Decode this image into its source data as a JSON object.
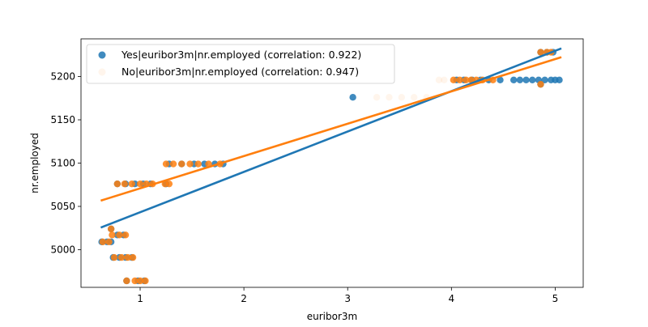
{
  "chart_data": {
    "type": "scatter",
    "xlabel": "euribor3m",
    "ylabel": "nr.employed",
    "xlim": [
      0.43,
      5.27
    ],
    "ylim": [
      4956.5,
      5243.5
    ],
    "xticks": [
      1,
      2,
      3,
      4,
      5
    ],
    "yticks": [
      5000,
      5050,
      5100,
      5150,
      5200
    ],
    "grid": false,
    "legend_position": "top-left",
    "series": [
      {
        "name": "Yes|euribor3m|nr.employed (correlation: 0.922)",
        "color": "#1f77b4",
        "points_alpha": 0.85,
        "fit": {
          "x": [
            0.63,
            5.05
          ],
          "y": [
            5026,
            5232
          ]
        },
        "points": [
          [
            0.63,
            5009
          ],
          [
            0.68,
            5009
          ],
          [
            0.72,
            5009
          ],
          [
            0.72,
            5024
          ],
          [
            0.74,
            4991
          ],
          [
            0.8,
            4991
          ],
          [
            0.86,
            4991
          ],
          [
            0.92,
            4991
          ],
          [
            0.78,
            5017
          ],
          [
            0.84,
            5017
          ],
          [
            0.78,
            5076
          ],
          [
            0.86,
            5076
          ],
          [
            0.95,
            5076
          ],
          [
            1.03,
            5076
          ],
          [
            1.1,
            5076
          ],
          [
            0.87,
            4964
          ],
          [
            0.98,
            4964
          ],
          [
            1.04,
            4964
          ],
          [
            1.25,
            5076
          ],
          [
            1.28,
            5099
          ],
          [
            1.4,
            5099
          ],
          [
            1.52,
            5099
          ],
          [
            1.62,
            5099
          ],
          [
            1.72,
            5099
          ],
          [
            1.8,
            5099
          ],
          [
            3.05,
            5176
          ],
          [
            4.05,
            5196
          ],
          [
            4.12,
            5196
          ],
          [
            4.2,
            5196
          ],
          [
            4.28,
            5196
          ],
          [
            4.36,
            5196
          ],
          [
            4.47,
            5196
          ],
          [
            4.6,
            5196
          ],
          [
            4.66,
            5196
          ],
          [
            4.72,
            5196
          ],
          [
            4.78,
            5196
          ],
          [
            4.84,
            5196
          ],
          [
            4.9,
            5196
          ],
          [
            4.96,
            5196
          ],
          [
            5.0,
            5196
          ],
          [
            5.04,
            5196
          ],
          [
            4.86,
            5191
          ],
          [
            4.86,
            5228
          ],
          [
            4.92,
            5228
          ],
          [
            4.98,
            5228
          ]
        ]
      },
      {
        "name": "No|euribor3m|nr.employed (correlation: 0.947)",
        "color": "#ff7f0e",
        "points_alpha": 0.85,
        "fit": {
          "x": [
            0.63,
            5.05
          ],
          "y": [
            5057,
            5222
          ]
        },
        "points": [
          [
            0.64,
            5009
          ],
          [
            0.7,
            5009
          ],
          [
            0.72,
            5024
          ],
          [
            0.73,
            5017
          ],
          [
            0.8,
            5017
          ],
          [
            0.86,
            5017
          ],
          [
            0.75,
            4991
          ],
          [
            0.82,
            4991
          ],
          [
            0.88,
            4991
          ],
          [
            0.93,
            4991
          ],
          [
            0.78,
            5076
          ],
          [
            0.85,
            5076
          ],
          [
            0.92,
            5076
          ],
          [
            1.0,
            5076
          ],
          [
            1.06,
            5076
          ],
          [
            1.12,
            5076
          ],
          [
            0.87,
            4964
          ],
          [
            0.95,
            4964
          ],
          [
            1.0,
            4964
          ],
          [
            1.05,
            4964
          ],
          [
            1.24,
            5076
          ],
          [
            1.28,
            5076
          ],
          [
            1.25,
            5099
          ],
          [
            1.32,
            5099
          ],
          [
            1.4,
            5099
          ],
          [
            1.48,
            5099
          ],
          [
            1.56,
            5099
          ],
          [
            1.66,
            5099
          ],
          [
            1.77,
            5099
          ],
          [
            3.28,
            5176
          ],
          [
            3.4,
            5176
          ],
          [
            3.52,
            5176
          ],
          [
            3.64,
            5176
          ],
          [
            3.76,
            5176
          ],
          [
            3.88,
            5196
          ],
          [
            3.93,
            5196
          ],
          [
            4.02,
            5196
          ],
          [
            4.08,
            5196
          ],
          [
            4.14,
            5196
          ],
          [
            4.19,
            5196
          ],
          [
            4.24,
            5196
          ],
          [
            4.3,
            5196
          ],
          [
            4.4,
            5196
          ],
          [
            4.86,
            5191
          ],
          [
            4.86,
            5228
          ],
          [
            4.92,
            5228
          ],
          [
            4.96,
            5228
          ]
        ],
        "faded_points": [
          [
            3.28,
            5176
          ],
          [
            3.4,
            5176
          ],
          [
            3.52,
            5176
          ],
          [
            3.64,
            5176
          ],
          [
            3.76,
            5176
          ],
          [
            3.88,
            5196
          ],
          [
            3.93,
            5196
          ]
        ]
      }
    ]
  }
}
